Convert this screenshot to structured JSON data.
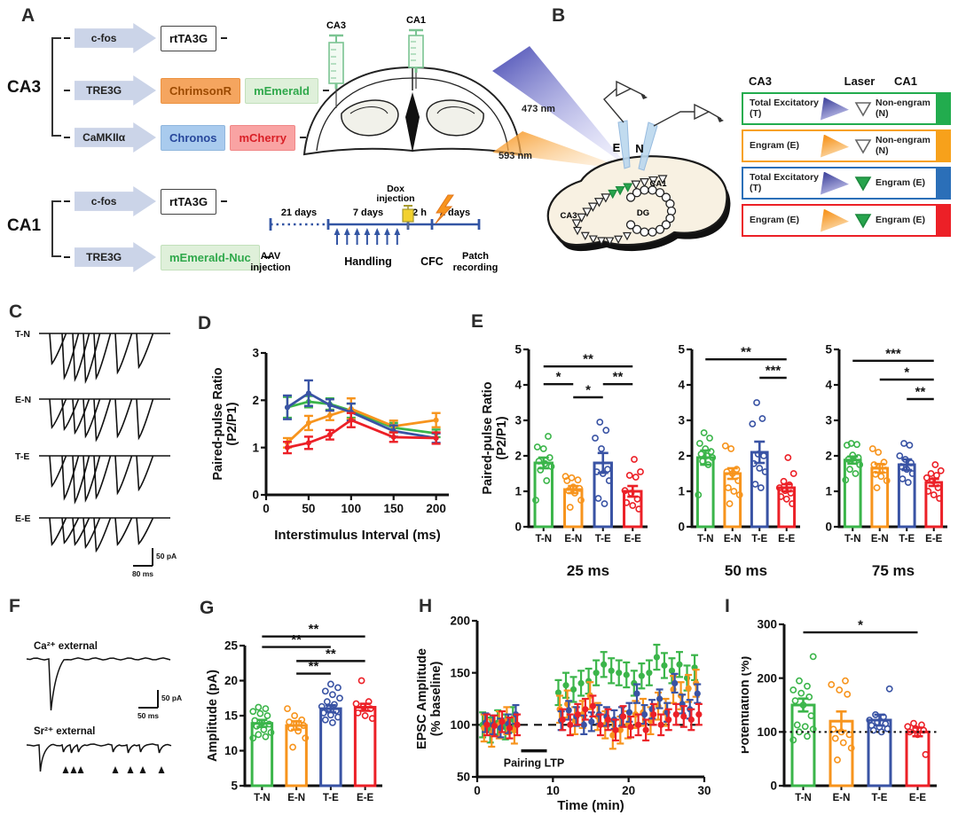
{
  "colors": {
    "series": {
      "green": "#3BB54A",
      "orange": "#F7941D",
      "blue": "#3953A4",
      "red": "#EC2027"
    },
    "legend": {
      "green": "#22AC4E",
      "orange": "#F7A11B",
      "blue": "#2B6FB8",
      "red": "#EC2027"
    },
    "timeline": "#3355A4",
    "laser_blue": "#44489F",
    "laser_orange": "#F7941D",
    "engram_triangle_green": "#27A44D"
  },
  "panels": {
    "A": "A",
    "B": "B",
    "C": "C",
    "D": "D",
    "E": "E",
    "F": "F",
    "G": "G",
    "H": "H",
    "I": "I"
  },
  "panelA": {
    "groups": [
      {
        "name": "CA3",
        "rows": [
          {
            "promoter": "c-fos",
            "genes": [
              {
                "label": "rtTA3G",
                "style": "plain"
              }
            ]
          },
          {
            "promoter": "TRE3G",
            "genes": [
              {
                "label": "ChrimsonR",
                "style": "orange"
              },
              {
                "label": "mEmerald",
                "style": "green"
              }
            ]
          },
          {
            "promoter": "CaMKIIα",
            "genes": [
              {
                "label": "Chronos",
                "style": "blue"
              },
              {
                "label": "mCherry",
                "style": "red"
              }
            ]
          }
        ]
      },
      {
        "name": "CA1",
        "rows": [
          {
            "promoter": "c-fos",
            "genes": [
              {
                "label": "rtTA3G",
                "style": "plain"
              }
            ]
          },
          {
            "promoter": "TRE3G",
            "genes": [
              {
                "label": "mEmerald-Nuc",
                "style": "green"
              }
            ]
          }
        ]
      }
    ],
    "brain": {
      "left": "CA3",
      "right": "CA1"
    },
    "timeline": {
      "t21": "21 days",
      "t7": "7 days",
      "t2h": "2 h",
      "t2d": "2 days",
      "dox1": "Dox",
      "dox2": "injection",
      "aav1": "AAV",
      "aav2": "injection",
      "handling": "Handling",
      "cfc": "CFC",
      "patch1": "Patch",
      "patch2": "recording"
    }
  },
  "panelB": {
    "laser_blue_label": "473 nm",
    "laser_orange_label": "593 nm",
    "electrode_e": "E",
    "electrode_n": "N",
    "region_ca3": "CA3",
    "region_ca1": "CA1",
    "region_dg": "DG",
    "legend": {
      "headers": [
        "CA3",
        "Laser",
        "CA1"
      ],
      "rows": [
        {
          "ca3": "Total Excitatory (T)",
          "laser": "blue",
          "marker": "open",
          "ca1": "Non-engram (N)",
          "color": "green"
        },
        {
          "ca3": "Engram (E)",
          "laser": "orange",
          "marker": "open",
          "ca1": "Non-engram (N)",
          "color": "orange"
        },
        {
          "ca3": "Total Excitatory (T)",
          "laser": "blue",
          "marker": "green",
          "ca1": "Engram (E)",
          "color": "blue"
        },
        {
          "ca3": "Engram (E)",
          "laser": "orange",
          "marker": "green",
          "ca1": "Engram (E)",
          "color": "red"
        }
      ]
    }
  },
  "panelC": {
    "traces": [
      "T-N",
      "E-N",
      "T-E",
      "E-E"
    ],
    "scale_y": "50 pA",
    "scale_x": "80 ms"
  },
  "panelF": {
    "trace1": "Ca²⁺ external",
    "trace2": "Sr²⁺ external",
    "scale_y": "50 pA",
    "scale_x": "50 ms"
  },
  "chart_data": [
    {
      "id": "D",
      "type": "line",
      "title": "",
      "xlabel": "Interstimulus Interval (ms)",
      "ylabel": [
        "Paired-pulse Ratio",
        "(P2/P1)"
      ],
      "xlim": [
        0,
        215
      ],
      "ylim": [
        0,
        3
      ],
      "xticks": [
        0,
        50,
        100,
        150,
        200
      ],
      "yticks": [
        0,
        1,
        2,
        3
      ],
      "x": [
        25,
        50,
        75,
        100,
        150,
        200
      ],
      "series": [
        {
          "name": "T-N",
          "color": "green",
          "values": [
            1.85,
            1.97,
            1.92,
            1.78,
            1.42,
            1.3
          ],
          "errors": [
            0.22,
            0.12,
            0.12,
            0.15,
            0.1,
            0.08
          ]
        },
        {
          "name": "E-N",
          "color": "orange",
          "values": [
            1.1,
            1.52,
            1.68,
            1.82,
            1.45,
            1.58
          ],
          "errors": [
            0.1,
            0.15,
            0.1,
            0.22,
            0.12,
            0.15
          ]
        },
        {
          "name": "T-E",
          "color": "blue",
          "values": [
            1.85,
            2.15,
            1.9,
            1.75,
            1.35,
            1.2
          ],
          "errors": [
            0.25,
            0.27,
            0.12,
            0.18,
            0.12,
            0.1
          ]
        },
        {
          "name": "E-E",
          "color": "red",
          "values": [
            1.0,
            1.1,
            1.27,
            1.58,
            1.22,
            1.2
          ],
          "errors": [
            0.12,
            0.13,
            0.1,
            0.15,
            0.1,
            0.12
          ]
        }
      ]
    },
    {
      "id": "E1",
      "type": "bar",
      "title": "25 ms",
      "ylabel": [
        "Paired-pulse Ratio",
        "(P2/P1)"
      ],
      "ylim": [
        0,
        5
      ],
      "yticks": [
        0,
        1,
        2,
        3,
        4,
        5
      ],
      "categories": [
        "T-N",
        "E-N",
        "T-E",
        "E-E"
      ],
      "colors": [
        "green",
        "orange",
        "blue",
        "red"
      ],
      "values": [
        1.8,
        1.05,
        1.8,
        1.0
      ],
      "errors": [
        0.15,
        0.1,
        0.28,
        0.15
      ],
      "points": [
        [
          0.75,
          1.3,
          1.6,
          1.7,
          1.78,
          1.85,
          1.95,
          2.2,
          2.25,
          2.55
        ],
        [
          0.55,
          0.75,
          0.95,
          1.02,
          1.08,
          1.12,
          1.3,
          1.32,
          1.38,
          1.42
        ],
        [
          0.65,
          0.8,
          1.3,
          1.5,
          1.55,
          1.62,
          2.2,
          2.5,
          2.72,
          2.95
        ],
        [
          0.5,
          0.6,
          0.68,
          0.78,
          0.95,
          1.02,
          1.4,
          1.45,
          1.55,
          1.9
        ]
      ],
      "sig": [
        [
          0,
          3,
          "**",
          4.52
        ],
        [
          0,
          1,
          "*",
          4.02
        ],
        [
          1,
          2,
          "*",
          3.65
        ],
        [
          2,
          3,
          "**",
          4.02
        ]
      ]
    },
    {
      "id": "E2",
      "type": "bar",
      "title": "50 ms",
      "ylim": [
        0,
        5
      ],
      "yticks": [
        0,
        1,
        2,
        3,
        4,
        5
      ],
      "categories": [
        "T-N",
        "E-N",
        "T-E",
        "E-E"
      ],
      "colors": [
        "green",
        "orange",
        "blue",
        "red"
      ],
      "values": [
        1.95,
        1.5,
        2.1,
        1.1
      ],
      "errors": [
        0.2,
        0.15,
        0.3,
        0.1
      ],
      "points": [
        [
          0.9,
          1.75,
          1.85,
          1.95,
          2.0,
          2.05,
          2.12,
          2.2,
          2.35,
          2.5,
          2.65
        ],
        [
          0.65,
          0.9,
          1.0,
          1.1,
          1.3,
          1.5,
          1.55,
          1.62,
          2.2,
          2.28
        ],
        [
          1.1,
          1.2,
          1.55,
          1.65,
          1.78,
          2.0,
          2.05,
          2.9,
          3.05,
          3.5
        ],
        [
          0.65,
          0.78,
          0.85,
          0.95,
          1.02,
          1.1,
          1.18,
          1.28,
          1.5,
          1.95
        ]
      ],
      "sig": [
        [
          0,
          3,
          "**",
          4.72
        ],
        [
          2,
          3,
          "***",
          4.2
        ]
      ]
    },
    {
      "id": "E3",
      "type": "bar",
      "title": "75 ms",
      "ylim": [
        0,
        5
      ],
      "yticks": [
        0,
        1,
        2,
        3,
        4,
        5
      ],
      "categories": [
        "T-N",
        "E-N",
        "T-E",
        "E-E"
      ],
      "colors": [
        "green",
        "orange",
        "blue",
        "red"
      ],
      "values": [
        1.88,
        1.65,
        1.75,
        1.25
      ],
      "errors": [
        0.1,
        0.12,
        0.15,
        0.1
      ],
      "points": [
        [
          1.32,
          1.5,
          1.62,
          1.75,
          1.85,
          1.9,
          1.95,
          2.02,
          2.3,
          2.32,
          2.35
        ],
        [
          1.1,
          1.3,
          1.42,
          1.48,
          1.6,
          1.7,
          1.75,
          1.82,
          2.1,
          2.2
        ],
        [
          1.25,
          1.35,
          1.5,
          1.62,
          1.7,
          1.8,
          1.9,
          2.0,
          2.3,
          2.35
        ],
        [
          0.8,
          0.9,
          1.0,
          1.1,
          1.3,
          1.38,
          1.45,
          1.5,
          1.58,
          1.75
        ]
      ],
      "sig": [
        [
          0,
          3,
          "***",
          4.68
        ],
        [
          1,
          3,
          "*",
          4.15
        ],
        [
          2,
          3,
          "**",
          3.6
        ]
      ]
    },
    {
      "id": "G",
      "type": "bar",
      "title": "",
      "ylabel": [
        "Amplitude (pA)"
      ],
      "ylim": [
        5,
        25
      ],
      "yticks": [
        5,
        10,
        15,
        20,
        25
      ],
      "categories": [
        "T-N",
        "E-N",
        "T-E",
        "E-E"
      ],
      "colors": [
        "green",
        "orange",
        "blue",
        "red"
      ],
      "values": [
        13.9,
        13.6,
        16.0,
        16.2
      ],
      "errors": [
        0.5,
        0.6,
        0.5,
        0.5
      ],
      "points": [
        [
          11.8,
          12.0,
          12.3,
          12.6,
          13.0,
          13.5,
          13.8,
          14.0,
          14.3,
          15.0,
          15.3,
          15.6,
          16.0,
          16.2
        ],
        [
          10.5,
          11.8,
          12.8,
          13.2,
          13.6,
          13.9,
          14.1,
          14.4,
          15.0,
          16.0
        ],
        [
          14.0,
          14.4,
          14.8,
          15.1,
          15.4,
          15.7,
          16.0,
          16.3,
          16.6,
          17.0,
          17.5,
          18.0,
          18.5,
          19.0,
          19.5
        ],
        [
          14.6,
          15.0,
          15.4,
          16.0,
          16.3,
          16.7,
          17.0,
          20.0
        ]
      ],
      "sig": [
        [
          0,
          3,
          "**",
          26.3
        ],
        [
          0,
          2,
          "**",
          24.8
        ],
        [
          1,
          3,
          "**",
          22.8
        ],
        [
          1,
          2,
          "**",
          21.0
        ]
      ]
    },
    {
      "id": "H",
      "type": "scatter",
      "xlabel": "Time (min)",
      "ylabel": [
        "EPSC Amplitude",
        "(% baseline)"
      ],
      "xlim": [
        0,
        30
      ],
      "ylim": [
        50,
        200
      ],
      "xticks": [
        0,
        10,
        20,
        30
      ],
      "yticks": [
        50,
        100,
        150,
        200
      ],
      "dashline": 100,
      "annotation": {
        "label": "Pairing LTP",
        "x1": 5.8,
        "x2": 9.2,
        "y": 75
      },
      "x": [
        1,
        2,
        3,
        4,
        5,
        11,
        12,
        13,
        14,
        15,
        16,
        17,
        18,
        19,
        20,
        21,
        22,
        23,
        24,
        25,
        26,
        27,
        28,
        29
      ],
      "series": [
        {
          "name": "T-N",
          "color": "green",
          "err": 12,
          "values": [
            100,
            95,
            102,
            98,
            105,
            131,
            138,
            134,
            140,
            142,
            150,
            158,
            152,
            150,
            148,
            140,
            147,
            150,
            165,
            157,
            152,
            158,
            145,
            155
          ]
        },
        {
          "name": "E-N",
          "color": "orange",
          "err": 13,
          "values": [
            97,
            92,
            100,
            104,
            95,
            115,
            120,
            104,
            110,
            128,
            108,
            100,
            90,
            95,
            100,
            110,
            112,
            104,
            118,
            112,
            134,
            128,
            135,
            140
          ]
        },
        {
          "name": "T-E",
          "color": "blue",
          "err": 9,
          "values": [
            102,
            100,
            97,
            101,
            110,
            104,
            114,
            108,
            100,
            103,
            110,
            108,
            105,
            108,
            112,
            130,
            110,
            115,
            125,
            112,
            140,
            120,
            115,
            130
          ]
        },
        {
          "name": "E-E",
          "color": "red",
          "err": 10,
          "values": [
            100,
            99,
            103,
            97,
            100,
            105,
            100,
            110,
            115,
            118,
            100,
            105,
            95,
            108,
            98,
            100,
            95,
            110,
            100,
            105,
            110,
            108,
            105,
            110
          ]
        }
      ]
    },
    {
      "id": "I",
      "type": "bar",
      "title": "",
      "ylabel": [
        "Potentiation (%)"
      ],
      "ylim": [
        0,
        300
      ],
      "yticks": [
        0,
        100,
        200,
        300
      ],
      "refline": 100,
      "categories": [
        "T-N",
        "E-N",
        "T-E",
        "E-E"
      ],
      "colors": [
        "green",
        "orange",
        "blue",
        "red"
      ],
      "values": [
        150,
        120,
        122,
        100
      ],
      "errors": [
        12,
        18,
        10,
        8
      ],
      "points": [
        [
          85,
          92,
          100,
          105,
          110,
          113,
          130,
          150,
          158,
          165,
          172,
          178,
          185,
          195,
          240
        ],
        [
          48,
          70,
          80,
          88,
          95,
          100,
          105,
          170,
          178,
          188,
          195
        ],
        [
          100,
          103,
          106,
          109,
          112,
          115,
          118,
          122,
          128,
          132,
          180
        ],
        [
          58,
          95,
          100,
          103,
          106,
          110,
          113,
          116
        ]
      ],
      "sig": [
        [
          0,
          3,
          "*",
          285
        ]
      ]
    }
  ]
}
